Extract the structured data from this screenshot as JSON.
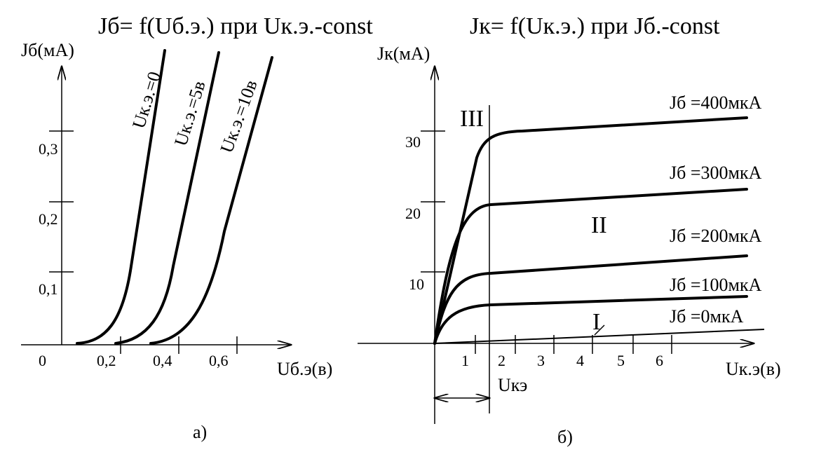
{
  "left": {
    "title": "Jб= f(Uб.э.) при Uк.э.-const",
    "y_label": "Jб(мА)",
    "x_label": "Uб.э(в)",
    "y_ticks": [
      "0,1",
      "0,2",
      "0,3"
    ],
    "x_ticks": [
      "0",
      "0,2",
      "0,4",
      "0,6"
    ],
    "curves": [
      "Uк.э.=0",
      "Uк.э.=5в",
      "Uк.э.=10в"
    ],
    "caption": "а)"
  },
  "right": {
    "title": "Jк= f(Uк.э.) при Jб.-const",
    "y_label": "Jк(мА)",
    "x_label": "Uк.э(в)",
    "y_ticks": [
      "10",
      "20",
      "30"
    ],
    "x_ticks": [
      "1",
      "2",
      "3",
      "4",
      "5",
      "6"
    ],
    "curves": [
      "Jб =400мкА",
      "Jб =300мкА",
      "Jб =200мкА",
      "Jб =100мкА",
      "Jб =0мкА"
    ],
    "regions": [
      "III",
      "II",
      "I"
    ],
    "span_label": "Uкэ",
    "caption": "б)"
  }
}
